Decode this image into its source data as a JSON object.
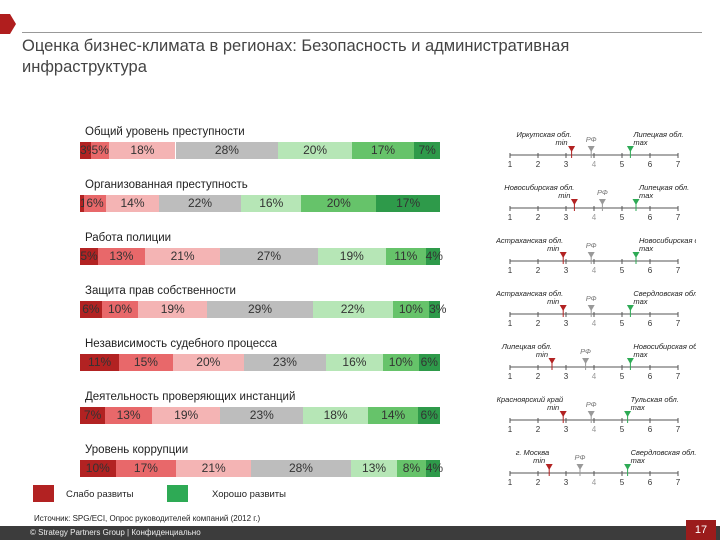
{
  "title": "Оценка бизнес-климата в регионах:  Безопасность и административная инфраструктура",
  "colors": [
    "#b22222",
    "#e8686a",
    "#f4b4b4",
    "#bdbdbd",
    "#b6e6b6",
    "#66c36a",
    "#2e9a4a"
  ],
  "chart_data": {
    "type": "bar",
    "subtype": "stacked-100-percent",
    "scale_labels": [
      "1",
      "2",
      "3",
      "4",
      "5",
      "6",
      "7"
    ],
    "rows": [
      {
        "label": "Общий уровень преступности",
        "values": [
          3,
          5,
          18,
          28,
          20,
          17,
          7
        ],
        "value_labels": [
          "3%",
          "5%",
          "18%",
          "28%",
          "20%",
          "17%",
          "7%"
        ],
        "min_label": "Иркутская обл.",
        "min_tag": "min",
        "rf_label": "РФ",
        "max_label": "Липецкая обл.",
        "max_tag": "max",
        "min_pos": 3.2,
        "rf_pos": 3.9,
        "max_pos": 5.3
      },
      {
        "label": "Организованная преступность",
        "values": [
          1,
          6,
          14,
          22,
          16,
          20,
          17
        ],
        "value_labels": [
          "1%",
          "6%",
          "14%",
          "22%",
          "16%",
          "20%",
          "17%"
        ],
        "min_label": "Новосибирская обл.",
        "min_tag": "min",
        "rf_label": "РФ",
        "max_label": "Липецкая обл.",
        "max_tag": "max",
        "min_pos": 3.3,
        "rf_pos": 4.3,
        "max_pos": 5.5
      },
      {
        "label": "Работа полиции",
        "values": [
          5,
          13,
          21,
          27,
          19,
          11,
          4
        ],
        "value_labels": [
          "5%",
          "13%",
          "21%",
          "27%",
          "19%",
          "11%",
          "4%"
        ],
        "min_label": "Астраханская обл.",
        "min_tag": "min",
        "rf_label": "РФ",
        "max_label": "Новосибирская обл.",
        "max_tag": "max",
        "min_pos": 2.9,
        "rf_pos": 3.9,
        "max_pos": 5.5
      },
      {
        "label": "Защита прав собственности",
        "values": [
          6,
          10,
          19,
          29,
          22,
          10,
          3
        ],
        "value_labels": [
          "6%",
          "10%",
          "19%",
          "29%",
          "22%",
          "10%",
          "3%"
        ],
        "min_label": "Астраханская обл.",
        "min_tag": "min",
        "rf_label": "РФ",
        "max_label": "Свердловская обл.",
        "max_tag": "max",
        "min_pos": 2.9,
        "rf_pos": 3.9,
        "max_pos": 5.3
      },
      {
        "label": "Независимость судебного процесса",
        "values": [
          11,
          15,
          20,
          23,
          16,
          10,
          6
        ],
        "value_labels": [
          "11%",
          "15%",
          "20%",
          "23%",
          "16%",
          "10%",
          "6%"
        ],
        "min_label": "Липецкая обл.",
        "min_tag": "min",
        "rf_label": "РФ",
        "max_label": "Новосибирская обл.",
        "max_tag": "max",
        "min_pos": 2.5,
        "rf_pos": 3.7,
        "max_pos": 5.3
      },
      {
        "label": "Деятельность проверяющих инстанций",
        "values": [
          7,
          13,
          19,
          23,
          18,
          14,
          6
        ],
        "value_labels": [
          "7%",
          "13%",
          "19%",
          "23%",
          "18%",
          "14%",
          "6%"
        ],
        "min_label": "Красноярский край",
        "min_tag": "min",
        "rf_label": "РФ",
        "max_label": "Тульская обл.",
        "max_tag": "max",
        "min_pos": 2.9,
        "rf_pos": 3.9,
        "max_pos": 5.2
      },
      {
        "label": "Уровень коррупции",
        "values": [
          10,
          17,
          21,
          28,
          13,
          8,
          4
        ],
        "value_labels": [
          "10%",
          "17%",
          "21%",
          "28%",
          "13%",
          "8%",
          "4%"
        ],
        "min_label": "г. Москва",
        "min_tag": "min",
        "rf_label": "РФ",
        "max_label": "Свердловская обл.",
        "max_tag": "max",
        "min_pos": 2.4,
        "rf_pos": 3.5,
        "max_pos": 5.2
      }
    ]
  },
  "legend": {
    "weak": "Слабо развиты",
    "strong": "Хорошо развиты",
    "weak_color": "#b22222",
    "strong_color": "#2eaa55"
  },
  "source": "Источник: SPG/ECI, Опрос руководителей компаний (2012 г.)",
  "footer": "© Strategy Partners Group  |  Конфиденциально",
  "page_number": "17"
}
